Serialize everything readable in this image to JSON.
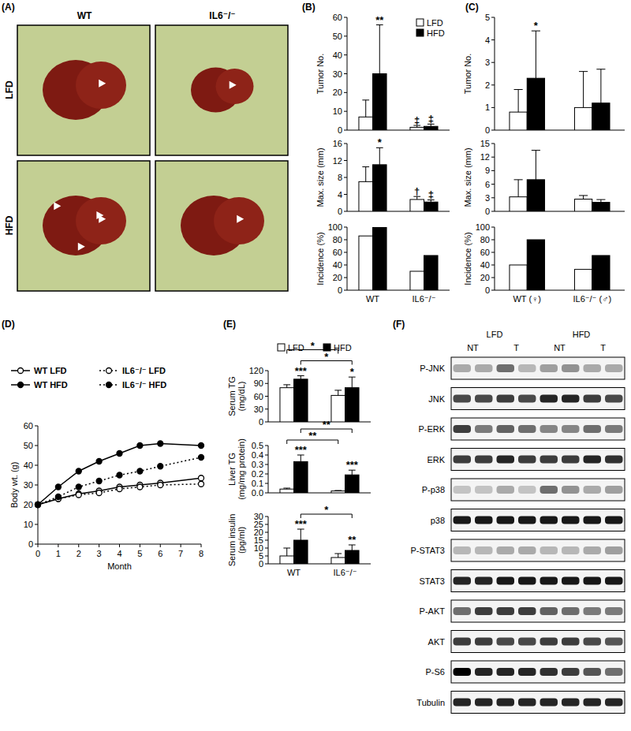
{
  "chart_data": [
    {
      "type": "bar",
      "y_label": "Tumor No.",
      "categories": [
        null,
        null
      ],
      "ylim": [
        0,
        60
      ],
      "yticks": [
        0,
        10,
        20,
        30,
        40,
        50,
        60
      ],
      "legend": "upper right",
      "series": [
        {
          "name": "LFD",
          "color": "#ffffff",
          "values": [
            7,
            1.5
          ],
          "errors": [
            9,
            1
          ],
          "significance": [
            null,
            "‡"
          ]
        },
        {
          "name": "HFD",
          "color": "#000000",
          "values": [
            30,
            2
          ],
          "errors": [
            26,
            1.2
          ],
          "significance": [
            "**",
            "‡"
          ]
        }
      ]
    },
    {
      "type": "bar",
      "y_label": "Max. size (mm)",
      "categories": [
        null,
        null
      ],
      "ylim": [
        0,
        16
      ],
      "yticks": [
        0,
        4,
        8,
        12,
        16
      ],
      "series": [
        {
          "color": "#ffffff",
          "values": [
            7,
            2.8
          ],
          "errors": [
            3.5,
            0.7
          ],
          "significance": [
            null,
            "†"
          ]
        },
        {
          "color": "#000000",
          "values": [
            11,
            2.2
          ],
          "errors": [
            4,
            0.5
          ],
          "significance": [
            "*",
            "‡"
          ]
        }
      ]
    },
    {
      "type": "bar",
      "y_label": "Incidence (%)",
      "categories": [
        "WT",
        "IL6⁻/⁻"
      ],
      "ylim": [
        0,
        100
      ],
      "yticks": [
        0,
        20,
        40,
        60,
        80,
        100
      ],
      "series": [
        {
          "color": "#ffffff",
          "values": [
            86,
            30
          ]
        },
        {
          "color": "#000000",
          "values": [
            100,
            55
          ]
        }
      ]
    },
    {
      "type": "bar",
      "y_label": "Tumor No.",
      "categories": [
        null,
        null
      ],
      "ylim": [
        0,
        5
      ],
      "yticks": [
        0,
        1,
        2,
        3,
        4,
        5
      ],
      "series": [
        {
          "color": "#ffffff",
          "values": [
            0.8,
            1.0
          ],
          "errors": [
            1.0,
            1.6
          ]
        },
        {
          "color": "#000000",
          "values": [
            2.3,
            1.2
          ],
          "errors": [
            2.1,
            1.5
          ],
          "significance": [
            "*",
            null
          ]
        }
      ]
    },
    {
      "type": "bar",
      "y_label": "Max. size (mm)",
      "categories": [
        null,
        null
      ],
      "ylim": [
        0,
        15
      ],
      "yticks": [
        0,
        3,
        6,
        9,
        12,
        15
      ],
      "series": [
        {
          "color": "#ffffff",
          "values": [
            3.2,
            2.7
          ],
          "errors": [
            3.8,
            0.8
          ]
        },
        {
          "color": "#000000",
          "values": [
            7,
            2
          ],
          "errors": [
            6.5,
            0.6
          ]
        }
      ]
    },
    {
      "type": "bar",
      "y_label": "Incidence (%)",
      "categories": [
        "WT (♀)",
        "IL6⁻/⁻ (♂)"
      ],
      "ylim": [
        0,
        100
      ],
      "yticks": [
        0,
        20,
        40,
        60,
        80,
        100
      ],
      "series": [
        {
          "color": "#ffffff",
          "values": [
            40,
            33
          ]
        },
        {
          "color": "#000000",
          "values": [
            80,
            55
          ]
        }
      ]
    },
    {
      "type": "line",
      "x_label": "Month",
      "y_label": "Body wt. (g)",
      "x": [
        0,
        1,
        2,
        3,
        4,
        5,
        6,
        8
      ],
      "xlim": [
        0,
        8
      ],
      "xticks": [
        0,
        1,
        2,
        3,
        4,
        5,
        6,
        7,
        8
      ],
      "ylim": [
        0,
        60
      ],
      "yticks": [
        0,
        10,
        20,
        30,
        40,
        50,
        60
      ],
      "legend": "upper left",
      "series": [
        {
          "name": "WT LFD",
          "color": "#000000",
          "marker": "open_circle",
          "line_style": "solid",
          "values": [
            20,
            23,
            25.5,
            27,
            29,
            30,
            31,
            33.5
          ]
        },
        {
          "name": "IL6⁻/⁻ LFD",
          "color": "#000000",
          "marker": "open_circle",
          "line_style": "dotted",
          "values": [
            20,
            23,
            25,
            26,
            28,
            29,
            30,
            30.5
          ]
        },
        {
          "name": "WT HFD",
          "color": "#000000",
          "marker": "filled_circle",
          "line_style": "solid",
          "values": [
            20,
            29,
            37,
            42,
            46,
            50,
            51,
            50
          ]
        },
        {
          "name": "IL6⁻/⁻ HFD",
          "color": "#000000",
          "marker": "filled_circle",
          "line_style": "dotted",
          "values": [
            20,
            24,
            29,
            32,
            35,
            37,
            39.5,
            44
          ]
        }
      ]
    },
    {
      "type": "bar",
      "y_label": "Serum TG\n(mg/dL)",
      "categories": [
        null,
        null
      ],
      "ylim": [
        0,
        120
      ],
      "yticks": [
        0,
        30,
        60,
        90,
        120
      ],
      "legend": "top",
      "series": [
        {
          "name": "LFD",
          "color": "#ffffff",
          "values": [
            80,
            62
          ],
          "errors": [
            7,
            12
          ]
        },
        {
          "name": "HFD",
          "color": "#000000",
          "values": [
            100,
            80
          ],
          "errors": [
            8,
            25
          ],
          "significance": [
            "***",
            "*"
          ]
        }
      ],
      "brackets": [
        {
          "from": [
            1,
            0
          ],
          "to": [
            1,
            1
          ],
          "label": "*"
        },
        {
          "from": [
            0,
            0
          ],
          "to": [
            0,
            1
          ],
          "label": "*"
        }
      ]
    },
    {
      "type": "bar",
      "y_label": "Liver TG\n(mg/mg protein)",
      "categories": [
        null,
        null
      ],
      "ylim": [
        0,
        0.5
      ],
      "yticks": [
        {
          "value": 0,
          "label": "0.0"
        },
        {
          "value": 0.1,
          "label": "0.1"
        },
        {
          "value": 0.2,
          "label": "0.2"
        },
        {
          "value": 0.3,
          "label": "0.3"
        },
        {
          "value": 0.4,
          "label": "0.4"
        },
        {
          "value": 0.5,
          "label": "0.5"
        }
      ],
      "series": [
        {
          "color": "#ffffff",
          "values": [
            0.04,
            0.02
          ],
          "errors": [
            0.01,
            0.005
          ]
        },
        {
          "color": "#000000",
          "values": [
            0.33,
            0.19
          ],
          "errors": [
            0.07,
            0.05
          ],
          "significance": [
            "***",
            "***"
          ]
        }
      ],
      "brackets": [
        {
          "from": [
            0,
            0
          ],
          "to": [
            0,
            1
          ],
          "label": "**"
        },
        {
          "from": [
            1,
            0
          ],
          "to": [
            1,
            1
          ],
          "label": "**"
        }
      ]
    },
    {
      "type": "bar",
      "y_label": "Serum insulin\n(pg/ml)",
      "categories": [
        "WT",
        "IL6⁻/⁻"
      ],
      "ylim": [
        0,
        30
      ],
      "yticks": [
        0,
        5,
        10,
        15,
        20,
        25,
        30
      ],
      "series": [
        {
          "color": "#ffffff",
          "values": [
            5,
            4
          ],
          "errors": [
            5,
            2.5
          ]
        },
        {
          "color": "#000000",
          "values": [
            15,
            8.5
          ],
          "errors": [
            7,
            3.5
          ],
          "significance": [
            "***",
            "**"
          ]
        }
      ],
      "brackets": [
        {
          "from": [
            1,
            0
          ],
          "to": [
            1,
            1
          ],
          "label": "*"
        }
      ]
    }
  ],
  "figure": {
    "panel_labels": [
      "(A)",
      "(B)",
      "(C)",
      "(D)",
      "(E)",
      "(F)"
    ],
    "photos": {
      "columns": [
        "WT",
        "IL6⁻/⁻"
      ],
      "rows": [
        {
          "label": "LFD",
          "arrowheads": [
            1,
            1
          ]
        },
        {
          "label": "HFD",
          "arrowheads": [
            4,
            1
          ]
        }
      ]
    },
    "blot": {
      "groups": [
        {
          "label": "LFD",
          "subgroups": [
            "NT",
            "T"
          ]
        },
        {
          "label": "HFD",
          "subgroups": [
            "NT",
            "T"
          ]
        }
      ],
      "rows": [
        {
          "label": "P-JNK",
          "bands": [
            0.3,
            0.3,
            0.55,
            0.25,
            0.35,
            0.4,
            0.3,
            0.3
          ]
        },
        {
          "label": "JNK",
          "bands": [
            0.7,
            0.7,
            0.75,
            0.7,
            0.85,
            0.85,
            0.75,
            0.7
          ]
        },
        {
          "label": "P-ERK",
          "bands": [
            0.75,
            0.5,
            0.6,
            0.55,
            0.45,
            0.45,
            0.55,
            0.5
          ]
        },
        {
          "label": "ERK",
          "bands": [
            0.75,
            0.75,
            0.85,
            0.75,
            0.75,
            0.75,
            0.85,
            0.8
          ]
        },
        {
          "label": "P-p38",
          "bands": [
            0.2,
            0.2,
            0.3,
            0.2,
            0.55,
            0.4,
            0.3,
            0.35
          ]
        },
        {
          "label": "p38",
          "bands": [
            0.9,
            0.9,
            0.9,
            0.9,
            0.9,
            0.9,
            0.9,
            0.9
          ]
        },
        {
          "label": "P-STAT3",
          "bands": [
            0.25,
            0.25,
            0.3,
            0.3,
            0.25,
            0.25,
            0.3,
            0.35
          ]
        },
        {
          "label": "STAT3",
          "bands": [
            0.85,
            0.85,
            0.9,
            0.9,
            0.9,
            0.9,
            0.9,
            0.9
          ]
        },
        {
          "label": "P-AKT",
          "bands": [
            0.55,
            0.75,
            0.75,
            0.75,
            0.6,
            0.55,
            0.5,
            0.5
          ]
        },
        {
          "label": "AKT",
          "bands": [
            0.75,
            0.75,
            0.7,
            0.7,
            0.75,
            0.75,
            0.7,
            0.65
          ]
        },
        {
          "label": "P-S6",
          "bands": [
            1.0,
            0.85,
            0.85,
            0.85,
            0.8,
            0.75,
            0.65,
            0.55
          ]
        },
        {
          "label": "Tubulin",
          "bands": [
            0.85,
            0.85,
            0.85,
            0.85,
            0.85,
            0.85,
            0.85,
            0.85
          ]
        }
      ]
    }
  }
}
